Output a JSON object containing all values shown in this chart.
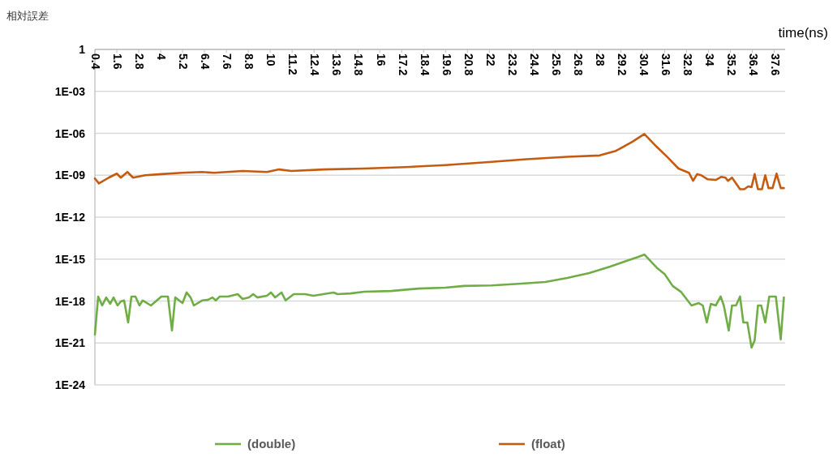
{
  "chart_data": {
    "type": "line",
    "ylabel": "相対誤差",
    "xlabel": "time(ns)",
    "log": "y",
    "grid": "y",
    "legend": "bottom",
    "marker": "none",
    "line_style": "solid",
    "xlim": [
      0.4,
      38.2
    ],
    "xticks": [
      0.4,
      1.6,
      2.8,
      4,
      5.2,
      6.4,
      7.6,
      8.8,
      10,
      11.2,
      12.4,
      13.6,
      14.8,
      16,
      17.2,
      18.4,
      19.6,
      20.8,
      22,
      23.2,
      24.4,
      25.6,
      26.8,
      28,
      29.2,
      30.4,
      31.6,
      32.8,
      34,
      35.2,
      36.4,
      37.6
    ],
    "ylim": [
      1e-24,
      1
    ],
    "yticks": [
      {
        "value": 1,
        "label": "1"
      },
      {
        "value": 0.001,
        "label": "1E-03"
      },
      {
        "value": 1e-06,
        "label": "1E-06"
      },
      {
        "value": 1e-09,
        "label": "1E-09"
      },
      {
        "value": 1e-12,
        "label": "1E-12"
      },
      {
        "value": 1e-15,
        "label": "1E-15"
      },
      {
        "value": 1e-18,
        "label": "1E-18"
      },
      {
        "value": 1e-21,
        "label": "1E-21"
      },
      {
        "value": 1e-24,
        "label": "1E-24"
      }
    ],
    "series": [
      {
        "name": "(double)",
        "color": "#70ad47",
        "x": [
          0.4,
          0.58,
          0.8,
          1.02,
          1.24,
          1.42,
          1.64,
          1.82,
          2.0,
          2.22,
          2.4,
          2.62,
          2.84,
          3.02,
          3.47,
          4.04,
          4.4,
          4.62,
          4.8,
          5.2,
          5.42,
          5.64,
          5.82,
          6.27,
          6.58,
          6.84,
          7.02,
          7.24,
          7.69,
          8.22,
          8.49,
          8.84,
          9.07,
          9.29,
          9.82,
          10.04,
          10.27,
          10.62,
          10.84,
          11.29,
          11.91,
          12.36,
          13.47,
          13.69,
          14.4,
          15.16,
          16.62,
          18.13,
          19.6,
          20.62,
          22.13,
          23.6,
          25.07,
          26.27,
          27.47,
          28.62,
          29.51,
          30.13,
          30.49,
          31.16,
          31.6,
          32.04,
          32.49,
          33.07,
          33.47,
          33.69,
          33.91,
          34.13,
          34.4,
          34.67,
          34.84,
          35.11,
          35.29,
          35.51,
          35.73,
          35.91,
          36.13,
          36.36,
          36.53,
          36.71,
          36.89,
          37.11,
          37.33,
          37.69,
          37.96,
          38.13
        ],
        "values": [
          4e-21,
          2.1e-18,
          4.8e-19,
          1.8e-18,
          6.3e-19,
          1.8e-18,
          4.8e-19,
          9.3e-19,
          1.1e-18,
          2.9e-20,
          2.1e-18,
          2.1e-18,
          4.8e-19,
          1.1e-18,
          4.8e-19,
          2.1e-18,
          2.1e-18,
          7.7e-21,
          1.8e-18,
          7.1e-19,
          4.1e-18,
          1.8e-18,
          4.8e-19,
          1.1e-18,
          1.2e-18,
          1.8e-18,
          1.1e-18,
          2.1e-18,
          2.1e-18,
          3.1e-18,
          1.4e-18,
          1.8e-18,
          3.1e-18,
          1.8e-18,
          2.4e-18,
          4.1e-18,
          1.8e-18,
          4.1e-18,
          1.1e-18,
          3.1e-18,
          3.1e-18,
          2.4e-18,
          4.1e-18,
          3.1e-18,
          3.5e-18,
          4.6e-18,
          5.2e-18,
          7.8e-18,
          9e-18,
          1.2e-17,
          1.3e-17,
          1.7e-17,
          2.3e-17,
          4.5e-17,
          1e-16,
          2.9e-16,
          7.4e-16,
          1.4e-15,
          2.1e-15,
          2.5e-16,
          8.5e-17,
          1.2e-17,
          4.6e-18,
          4.8e-19,
          7.1e-19,
          4.8e-19,
          2.9e-20,
          6.3e-19,
          4.8e-19,
          2.1e-18,
          4.8e-19,
          7.7e-21,
          4.8e-19,
          4.8e-19,
          2.1e-18,
          2.9e-20,
          2.9e-20,
          4.6e-22,
          1.5e-21,
          4.8e-19,
          4.8e-19,
          2.9e-20,
          2.1e-18,
          2.1e-18,
          1.8e-21,
          1.8e-18
        ]
      },
      {
        "name": "(float)",
        "color": "#c55a11",
        "x": [
          0.4,
          0.62,
          1.16,
          1.6,
          1.82,
          2.18,
          2.49,
          3.16,
          4.04,
          5.16,
          6.27,
          6.93,
          8.49,
          9.82,
          10.49,
          11.16,
          12.93,
          15.16,
          17.38,
          19.6,
          21.82,
          24.04,
          26.27,
          28.04,
          28.93,
          29.82,
          30.49,
          31.16,
          31.73,
          32.36,
          32.93,
          33.16,
          33.38,
          33.6,
          33.96,
          34.4,
          34.71,
          34.93,
          35.07,
          35.29,
          35.73,
          35.96,
          36.18,
          36.36,
          36.53,
          36.71,
          36.93,
          37.11,
          37.29,
          37.51,
          37.73,
          37.96,
          38.13
        ],
        "values": [
          5.9e-10,
          2.6e-10,
          6.7e-10,
          1.3e-09,
          6.7e-10,
          1.7e-09,
          6.7e-10,
          1e-09,
          1.2e-09,
          1.5e-09,
          1.7e-09,
          1.5e-09,
          2e-09,
          1.7e-09,
          2.6e-09,
          2e-09,
          2.6e-09,
          3e-09,
          3.8e-09,
          5.3e-09,
          8.5e-09,
          1.4e-08,
          2.1e-08,
          2.6e-08,
          5.5e-08,
          2.4e-07,
          9e-07,
          1.1e-07,
          2.1e-08,
          3e-09,
          1.5e-09,
          4e-10,
          1.2e-09,
          1e-09,
          5.1e-10,
          4.6e-10,
          7.7e-10,
          6.7e-10,
          4e-10,
          6.7e-10,
          1e-10,
          1e-10,
          1.6e-10,
          1.4e-10,
          1.2e-09,
          1e-10,
          1e-10,
          1e-09,
          1.2e-10,
          1.2e-10,
          1.3e-09,
          1.2e-10,
          1.2e-10
        ]
      }
    ]
  }
}
